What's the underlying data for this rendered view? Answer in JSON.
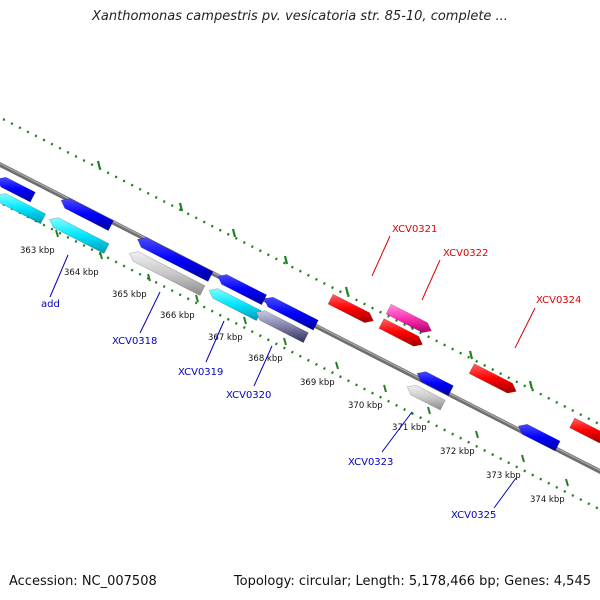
{
  "title": "Xanthomonas campestris pv. vesicatoria str. 85-10, complete ...",
  "footer": {
    "accession": "Accession: NC_007508",
    "stats": "Topology: circular; Length: 5,178,466 bp; Genes: 4,545"
  },
  "colors": {
    "backbone": "#808080",
    "gc_skew": "#208020",
    "forward_label": "#e00000",
    "reverse_label": "#0000c0",
    "label_text": "#111111"
  },
  "ticks": [
    "363 kbp",
    "364 kbp",
    "365 kbp",
    "366 kbp",
    "367 kbp",
    "368 kbp",
    "369 kbp",
    "370 kbp",
    "371 kbp",
    "372 kbp",
    "373 kbp",
    "374 kbp"
  ],
  "genes": [
    {
      "label": "add",
      "strand": "reverse",
      "color": "#0000ff"
    },
    {
      "label": "XCV0318",
      "strand": "reverse",
      "color": "#c0c0c0"
    },
    {
      "label": "XCV0319",
      "strand": "reverse",
      "color": "#00ffff"
    },
    {
      "label": "XCV0320",
      "strand": "reverse",
      "color": "#8080a0"
    },
    {
      "label": "XCV0321",
      "strand": "forward",
      "color": "#ff0000"
    },
    {
      "label": "XCV0322",
      "strand": "forward",
      "color": "#ff40b0"
    },
    {
      "label": "XCV0323",
      "strand": "reverse",
      "color": "#c0c0c0"
    },
    {
      "label": "XCV0324",
      "strand": "forward",
      "color": "#ff0000"
    },
    {
      "label": "XCV0325",
      "strand": "reverse",
      "color": "#0000ff"
    }
  ]
}
